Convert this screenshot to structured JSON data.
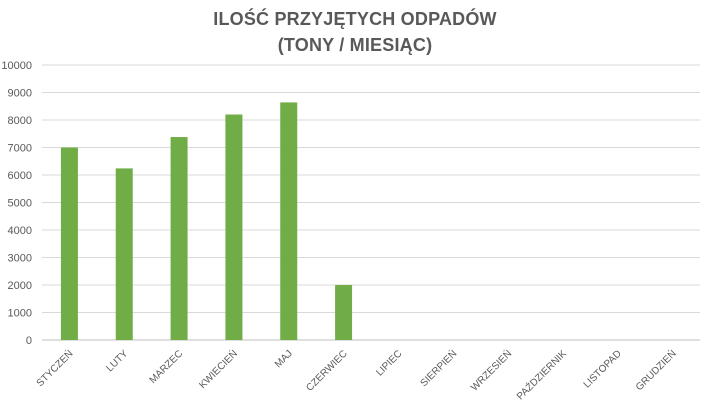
{
  "chart_data": {
    "type": "bar",
    "title": "ILOŚĆ PRZYJĘTYCH ODPADÓW",
    "subtitle": "(TONY / MIESIĄC)",
    "xlabel": "",
    "ylabel": "",
    "categories": [
      "STYCZEŃ",
      "LUTY",
      "MARZEC",
      "KWIECIEŃ",
      "MAJ",
      "CZERWIEC",
      "LIPIEC",
      "SIERPIEŃ",
      "WRZESIEŃ",
      "PAŹDZIERNIK",
      "LISTOPAD",
      "GRUDZIEŃ"
    ],
    "values": [
      7000,
      6240,
      7380,
      8200,
      8640,
      2000,
      null,
      null,
      null,
      null,
      null,
      null
    ],
    "ylim": [
      0,
      10000
    ],
    "yticks": [
      0,
      1000,
      2000,
      3000,
      4000,
      5000,
      6000,
      7000,
      8000,
      9000,
      10000
    ],
    "grid": true,
    "legend": "none",
    "colors": {
      "bar": "#70AD47",
      "grid": "#D9D9D9",
      "axis": "#BFBFBF",
      "text": "#595959",
      "title": "#595959"
    }
  }
}
